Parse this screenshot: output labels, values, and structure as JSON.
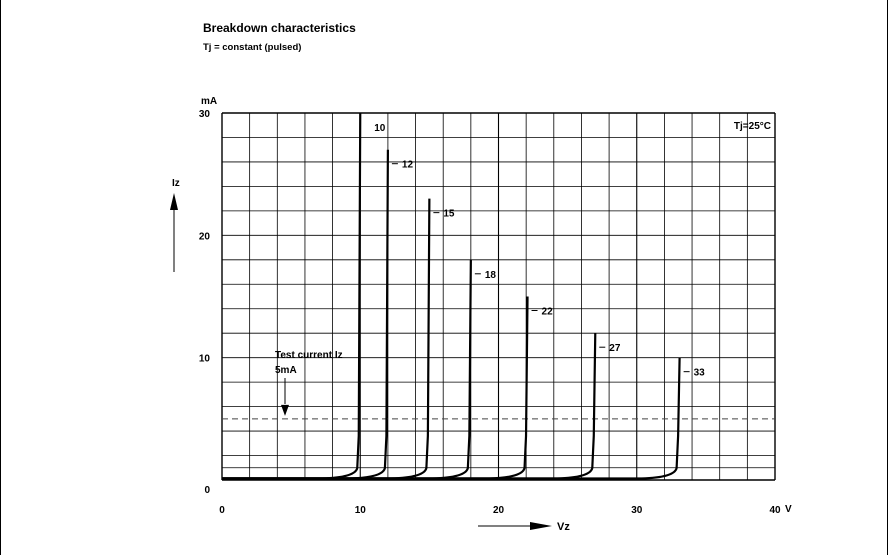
{
  "chart_data": {
    "type": "line",
    "title": "Breakdown characteristics",
    "subtitle": "Tj = constant (pulsed)",
    "xlabel": "Vz",
    "ylabel": "Iz",
    "x_unit": "V",
    "y_unit": "mA",
    "xlim": [
      0,
      40
    ],
    "ylim": [
      0,
      30
    ],
    "x_ticks": [
      "0",
      "10",
      "20",
      "30",
      "40"
    ],
    "y_ticks": [
      "0",
      "10",
      "20",
      "30"
    ],
    "grid": true,
    "condition_label": "Tj=25°C",
    "test_current": {
      "value": 5,
      "label_line1": "Test current Iz",
      "label_line2": "5mA"
    },
    "series": [
      {
        "name": "10",
        "vz": 10.0,
        "iz_max": 30.0
      },
      {
        "name": "12",
        "vz": 12.0,
        "iz_max": 27.0
      },
      {
        "name": "15",
        "vz": 15.0,
        "iz_max": 23.0
      },
      {
        "name": "18",
        "vz": 18.0,
        "iz_max": 18.0
      },
      {
        "name": "22",
        "vz": 22.1,
        "iz_max": 15.0
      },
      {
        "name": "27",
        "vz": 27.0,
        "iz_max": 12.0
      },
      {
        "name": "33",
        "vz": 33.1,
        "iz_max": 10.0
      }
    ]
  }
}
